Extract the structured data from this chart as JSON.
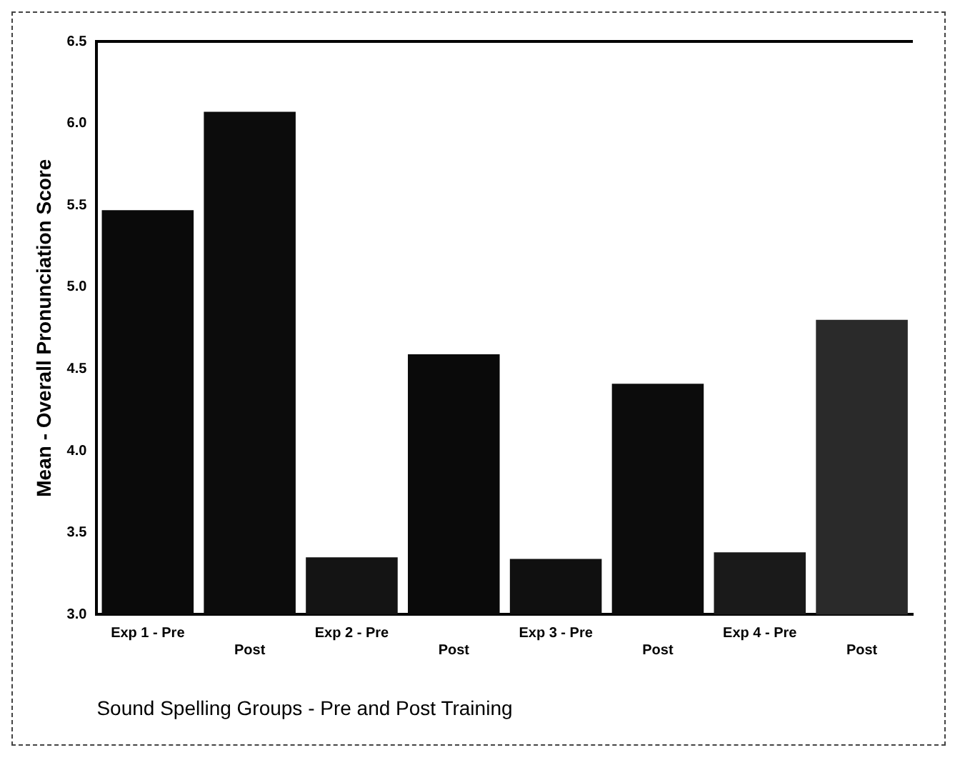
{
  "chart_data": {
    "type": "bar",
    "categories": [
      "Exp 1 - Pre",
      "Post",
      "Exp 2 - Pre",
      "Post",
      "Exp 3 - Pre",
      "Post",
      "Exp 4 - Pre",
      "Post"
    ],
    "values": [
      5.47,
      6.07,
      3.35,
      4.59,
      3.34,
      4.41,
      3.38,
      4.8
    ],
    "colors": [
      "#0a0a0a",
      "#0c0c0c",
      "#141414",
      "#0a0a0a",
      "#101010",
      "#0c0c0c",
      "#1a1a1a",
      "#2a2a2a"
    ],
    "xlabel": "Sound Spelling Groups - Pre and Post Training",
    "ylabel": "Mean - Overall Pronunciation Score",
    "ylim": [
      3.0,
      6.5
    ],
    "yticks": [
      {
        "value": 3.0,
        "label": "3.0"
      },
      {
        "value": 3.5,
        "label": "3.5"
      },
      {
        "value": 4.0,
        "label": "4.0"
      },
      {
        "value": 4.5,
        "label": "4.5"
      },
      {
        "value": 5.0,
        "label": "5.0"
      },
      {
        "value": 5.5,
        "label": "5.5"
      },
      {
        "value": 6.0,
        "label": "6.0"
      },
      {
        "value": 6.5,
        "label": "6.5"
      }
    ],
    "grid": false,
    "legend": false
  }
}
